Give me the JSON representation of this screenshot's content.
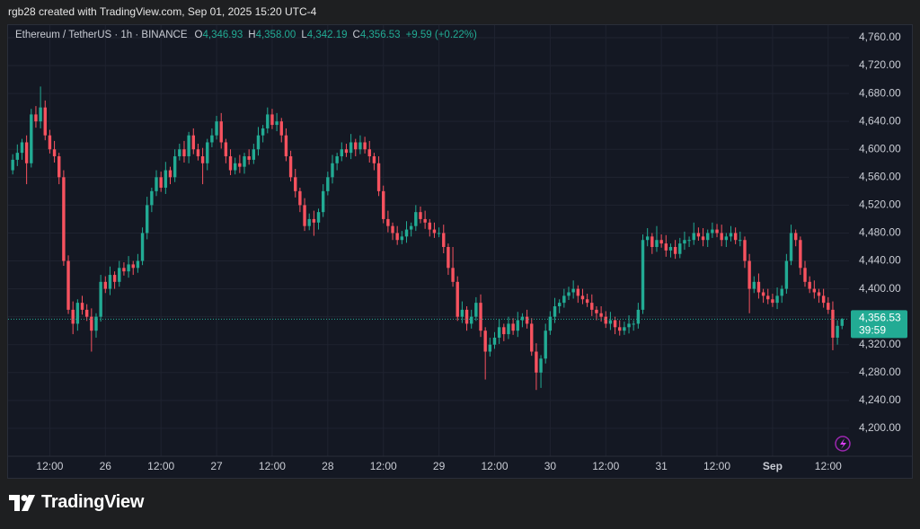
{
  "header": {
    "credit": "rgb28 created with TradingView.com, Sep 01, 2025 15:20 UTC-4"
  },
  "chart_data": {
    "type": "candlestick",
    "title": "Ethereum / TetherUS · 1h · BINANCE",
    "legend_values": [
      {
        "label": "O",
        "value": "4,346.93"
      },
      {
        "label": "H",
        "value": "4,358.00"
      },
      {
        "label": "L",
        "value": "4,342.19"
      },
      {
        "label": "C",
        "value": "4,356.53"
      }
    ],
    "change": "+9.59 (+0.22%)",
    "up_color": "#22ab94",
    "down_color": "#f7525f",
    "grid": true,
    "last_price_label": "4,356.53",
    "countdown": "39:59",
    "xlim": [
      -1,
      180.5
    ],
    "xticks": [
      {
        "value": 8,
        "label": "12:00"
      },
      {
        "value": 20,
        "label": "26"
      },
      {
        "value": 32,
        "label": "12:00"
      },
      {
        "value": 44,
        "label": "27"
      },
      {
        "value": 56,
        "label": "12:00"
      },
      {
        "value": 68,
        "label": "28"
      },
      {
        "value": 80,
        "label": "12:00"
      },
      {
        "value": 92,
        "label": "29"
      },
      {
        "value": 104,
        "label": "12:00"
      },
      {
        "value": 116,
        "label": "30"
      },
      {
        "value": 128,
        "label": "12:00"
      },
      {
        "value": 140,
        "label": "31"
      },
      {
        "value": 152,
        "label": "12:00"
      },
      {
        "value": 164,
        "label": "Sep"
      },
      {
        "value": 176,
        "label": "12:00"
      }
    ],
    "ylim": [
      4160,
      4778
    ],
    "yticks": [
      {
        "value": 4200,
        "label": "4,200.00"
      },
      {
        "value": 4240,
        "label": "4,240.00"
      },
      {
        "value": 4280,
        "label": "4,280.00"
      },
      {
        "value": 4320,
        "label": "4,320.00"
      },
      {
        "value": 4360,
        "label": "4,360.00"
      },
      {
        "value": 4400,
        "label": "4,400.00"
      },
      {
        "value": 4440,
        "label": "4,440.00"
      },
      {
        "value": 4480,
        "label": "4,480.00"
      },
      {
        "value": 4520,
        "label": "4,520.00"
      },
      {
        "value": 4560,
        "label": "4,560.00"
      },
      {
        "value": 4600,
        "label": "4,600.00"
      },
      {
        "value": 4640,
        "label": "4,640.00"
      },
      {
        "value": 4680,
        "label": "4,680.00"
      },
      {
        "value": 4720,
        "label": "4,720.00"
      },
      {
        "value": 4760,
        "label": "4,760.00"
      }
    ],
    "ohlc": [
      [
        4570,
        4593,
        4564,
        4585
      ],
      [
        4585,
        4607,
        4576,
        4595
      ],
      [
        4595,
        4615,
        4585,
        4610
      ],
      [
        4610,
        4620,
        4550,
        4580
      ],
      [
        4580,
        4658,
        4574,
        4650
      ],
      [
        4650,
        4662,
        4631,
        4640
      ],
      [
        4640,
        4690,
        4630,
        4660
      ],
      [
        4660,
        4670,
        4613,
        4620
      ],
      [
        4620,
        4628,
        4594,
        4600
      ],
      [
        4600,
        4612,
        4581,
        4590
      ],
      [
        4590,
        4595,
        4550,
        4560
      ],
      [
        4560,
        4570,
        4433,
        4440
      ],
      [
        4440,
        4448,
        4364,
        4370
      ],
      [
        4370,
        4382,
        4335,
        4350
      ],
      [
        4350,
        4385,
        4340,
        4380
      ],
      [
        4380,
        4390,
        4363,
        4370
      ],
      [
        4370,
        4378,
        4354,
        4360
      ],
      [
        4360,
        4372,
        4310,
        4340
      ],
      [
        4340,
        4365,
        4330,
        4360
      ],
      [
        4360,
        4420,
        4353,
        4410
      ],
      [
        4410,
        4418,
        4394,
        4400
      ],
      [
        4400,
        4432,
        4391,
        4420
      ],
      [
        4420,
        4425,
        4400,
        4410
      ],
      [
        4410,
        4440,
        4403,
        4430
      ],
      [
        4430,
        4438,
        4419,
        4425
      ],
      [
        4425,
        4447,
        4416,
        4435
      ],
      [
        4435,
        4440,
        4420,
        4430
      ],
      [
        4430,
        4450,
        4423,
        4440
      ],
      [
        4440,
        4488,
        4434,
        4480
      ],
      [
        4480,
        4532,
        4471,
        4520
      ],
      [
        4520,
        4545,
        4510,
        4540
      ],
      [
        4540,
        4570,
        4533,
        4560
      ],
      [
        4560,
        4568,
        4539,
        4545
      ],
      [
        4545,
        4582,
        4536,
        4570
      ],
      [
        4570,
        4575,
        4550,
        4560
      ],
      [
        4560,
        4600,
        4553,
        4590
      ],
      [
        4590,
        4608,
        4584,
        4600
      ],
      [
        4600,
        4612,
        4581,
        4590
      ],
      [
        4590,
        4625,
        4580,
        4620
      ],
      [
        4620,
        4630,
        4593,
        4600
      ],
      [
        4600,
        4608,
        4584,
        4590
      ],
      [
        4590,
        4602,
        4550,
        4580
      ],
      [
        4580,
        4615,
        4570,
        4610
      ],
      [
        4610,
        4630,
        4603,
        4620
      ],
      [
        4620,
        4648,
        4614,
        4640
      ],
      [
        4640,
        4652,
        4601,
        4610
      ],
      [
        4610,
        4615,
        4580,
        4590
      ],
      [
        4590,
        4600,
        4563,
        4570
      ],
      [
        4570,
        4588,
        4564,
        4580
      ],
      [
        4580,
        4592,
        4566,
        4575
      ],
      [
        4575,
        4595,
        4565,
        4590
      ],
      [
        4590,
        4600,
        4578,
        4585
      ],
      [
        4585,
        4608,
        4579,
        4600
      ],
      [
        4600,
        4632,
        4591,
        4620
      ],
      [
        4620,
        4635,
        4610,
        4630
      ],
      [
        4630,
        4660,
        4623,
        4650
      ],
      [
        4650,
        4658,
        4629,
        4635
      ],
      [
        4635,
        4652,
        4626,
        4640
      ],
      [
        4640,
        4645,
        4610,
        4620
      ],
      [
        4620,
        4630,
        4583,
        4590
      ],
      [
        4590,
        4598,
        4554,
        4560
      ],
      [
        4560,
        4572,
        4531,
        4540
      ],
      [
        4540,
        4545,
        4510,
        4520
      ],
      [
        4520,
        4530,
        4483,
        4490
      ],
      [
        4490,
        4508,
        4484,
        4500
      ],
      [
        4500,
        4512,
        4476,
        4495
      ],
      [
        4495,
        4515,
        4485,
        4510
      ],
      [
        4510,
        4550,
        4503,
        4540
      ],
      [
        4540,
        4568,
        4534,
        4560
      ],
      [
        4560,
        4592,
        4551,
        4580
      ],
      [
        4580,
        4595,
        4570,
        4590
      ],
      [
        4590,
        4610,
        4583,
        4600
      ],
      [
        4600,
        4608,
        4589,
        4595
      ],
      [
        4595,
        4622,
        4586,
        4610
      ],
      [
        4610,
        4615,
        4590,
        4600
      ],
      [
        4600,
        4620,
        4593,
        4610
      ],
      [
        4610,
        4618,
        4594,
        4600
      ],
      [
        4600,
        4612,
        4581,
        4590
      ],
      [
        4590,
        4595,
        4570,
        4580
      ],
      [
        4580,
        4590,
        4533,
        4540
      ],
      [
        4540,
        4548,
        4494,
        4500
      ],
      [
        4500,
        4512,
        4481,
        4490
      ],
      [
        4490,
        4495,
        4470,
        4480
      ],
      [
        4480,
        4490,
        4463,
        4470
      ],
      [
        4470,
        4483,
        4464,
        4475
      ],
      [
        4475,
        4497,
        4466,
        4485
      ],
      [
        4485,
        4495,
        4475,
        4490
      ],
      [
        4490,
        4520,
        4483,
        4510
      ],
      [
        4510,
        4518,
        4494,
        4500
      ],
      [
        4500,
        4512,
        4486,
        4495
      ],
      [
        4495,
        4500,
        4475,
        4485
      ],
      [
        4485,
        4495,
        4473,
        4480
      ],
      [
        4480,
        4488,
        4474,
        4480
      ],
      [
        4480,
        4492,
        4451,
        4460
      ],
      [
        4460,
        4465,
        4420,
        4430
      ],
      [
        4430,
        4460,
        4403,
        4410
      ],
      [
        4410,
        4418,
        4354,
        4360
      ],
      [
        4360,
        4382,
        4351,
        4370
      ],
      [
        4370,
        4375,
        4340,
        4350
      ],
      [
        4350,
        4370,
        4343,
        4360
      ],
      [
        4360,
        4388,
        4354,
        4380
      ],
      [
        4380,
        4392,
        4331,
        4340
      ],
      [
        4340,
        4345,
        4270,
        4310
      ],
      [
        4310,
        4330,
        4303,
        4320
      ],
      [
        4320,
        4338,
        4314,
        4330
      ],
      [
        4330,
        4357,
        4321,
        4345
      ],
      [
        4345,
        4350,
        4325,
        4335
      ],
      [
        4335,
        4360,
        4328,
        4350
      ],
      [
        4350,
        4358,
        4334,
        4340
      ],
      [
        4340,
        4367,
        4331,
        4355
      ],
      [
        4355,
        4365,
        4345,
        4360
      ],
      [
        4360,
        4370,
        4343,
        4350
      ],
      [
        4350,
        4358,
        4304,
        4310
      ],
      [
        4310,
        4322,
        4255,
        4280
      ],
      [
        4280,
        4305,
        4258,
        4300
      ],
      [
        4300,
        4350,
        4293,
        4340
      ],
      [
        4340,
        4368,
        4334,
        4360
      ],
      [
        4360,
        4387,
        4351,
        4375
      ],
      [
        4375,
        4385,
        4365,
        4380
      ],
      [
        4380,
        4400,
        4373,
        4390
      ],
      [
        4390,
        4403,
        4384,
        4395
      ],
      [
        4395,
        4412,
        4386,
        4400
      ],
      [
        4400,
        4405,
        4380,
        4390
      ],
      [
        4390,
        4400,
        4378,
        4385
      ],
      [
        4385,
        4393,
        4374,
        4380
      ],
      [
        4380,
        4392,
        4361,
        4370
      ],
      [
        4370,
        4375,
        4355,
        4365
      ],
      [
        4365,
        4375,
        4353,
        4360
      ],
      [
        4360,
        4368,
        4344,
        4350
      ],
      [
        4350,
        4367,
        4341,
        4355
      ],
      [
        4355,
        4360,
        4335,
        4345
      ],
      [
        4345,
        4355,
        4333,
        4340
      ],
      [
        4340,
        4353,
        4334,
        4345
      ],
      [
        4345,
        4362,
        4336,
        4350
      ],
      [
        4350,
        4355,
        4340,
        4350
      ],
      [
        4350,
        4380,
        4343,
        4370
      ],
      [
        4370,
        4478,
        4364,
        4470
      ],
      [
        4470,
        4487,
        4461,
        4475
      ],
      [
        4475,
        4480,
        4450,
        4460
      ],
      [
        4460,
        4490,
        4453,
        4470
      ],
      [
        4470,
        4478,
        4459,
        4465
      ],
      [
        4465,
        4477,
        4446,
        4455
      ],
      [
        4455,
        4465,
        4445,
        4460
      ],
      [
        4460,
        4470,
        4443,
        4450
      ],
      [
        4450,
        4473,
        4444,
        4465
      ],
      [
        4465,
        4482,
        4456,
        4470
      ],
      [
        4470,
        4475,
        4460,
        4470
      ],
      [
        4470,
        4495,
        4463,
        4480
      ],
      [
        4480,
        4488,
        4469,
        4475
      ],
      [
        4475,
        4487,
        4461,
        4470
      ],
      [
        4470,
        4485,
        4460,
        4480
      ],
      [
        4480,
        4495,
        4473,
        4485
      ],
      [
        4485,
        4493,
        4474,
        4480
      ],
      [
        4480,
        4492,
        4461,
        4470
      ],
      [
        4470,
        4480,
        4460,
        4475
      ],
      [
        4475,
        4490,
        4468,
        4480
      ],
      [
        4480,
        4488,
        4464,
        4470
      ],
      [
        4470,
        4482,
        4461,
        4470
      ],
      [
        4470,
        4475,
        4430,
        4440
      ],
      [
        4440,
        4450,
        4365,
        4400
      ],
      [
        4400,
        4418,
        4394,
        4410
      ],
      [
        4410,
        4422,
        4386,
        4395
      ],
      [
        4395,
        4400,
        4380,
        4390
      ],
      [
        4390,
        4400,
        4378,
        4385
      ],
      [
        4385,
        4393,
        4374,
        4380
      ],
      [
        4380,
        4402,
        4371,
        4390
      ],
      [
        4390,
        4405,
        4380,
        4400
      ],
      [
        4400,
        4450,
        4393,
        4440
      ],
      [
        4440,
        4492,
        4434,
        4480
      ],
      [
        4480,
        4485,
        4461,
        4470
      ],
      [
        4470,
        4475,
        4420,
        4430
      ],
      [
        4430,
        4440,
        4403,
        4410
      ],
      [
        4410,
        4418,
        4394,
        4400
      ],
      [
        4400,
        4412,
        4386,
        4395
      ],
      [
        4395,
        4400,
        4380,
        4390
      ],
      [
        4390,
        4400,
        4373,
        4380
      ],
      [
        4380,
        4388,
        4364,
        4370
      ],
      [
        4370,
        4382,
        4312,
        4330
      ],
      [
        4330,
        4355,
        4320,
        4346.93
      ],
      [
        4346.93,
        4358,
        4342.19,
        4356.53
      ]
    ]
  },
  "footer": {
    "logo": "TradingView"
  }
}
